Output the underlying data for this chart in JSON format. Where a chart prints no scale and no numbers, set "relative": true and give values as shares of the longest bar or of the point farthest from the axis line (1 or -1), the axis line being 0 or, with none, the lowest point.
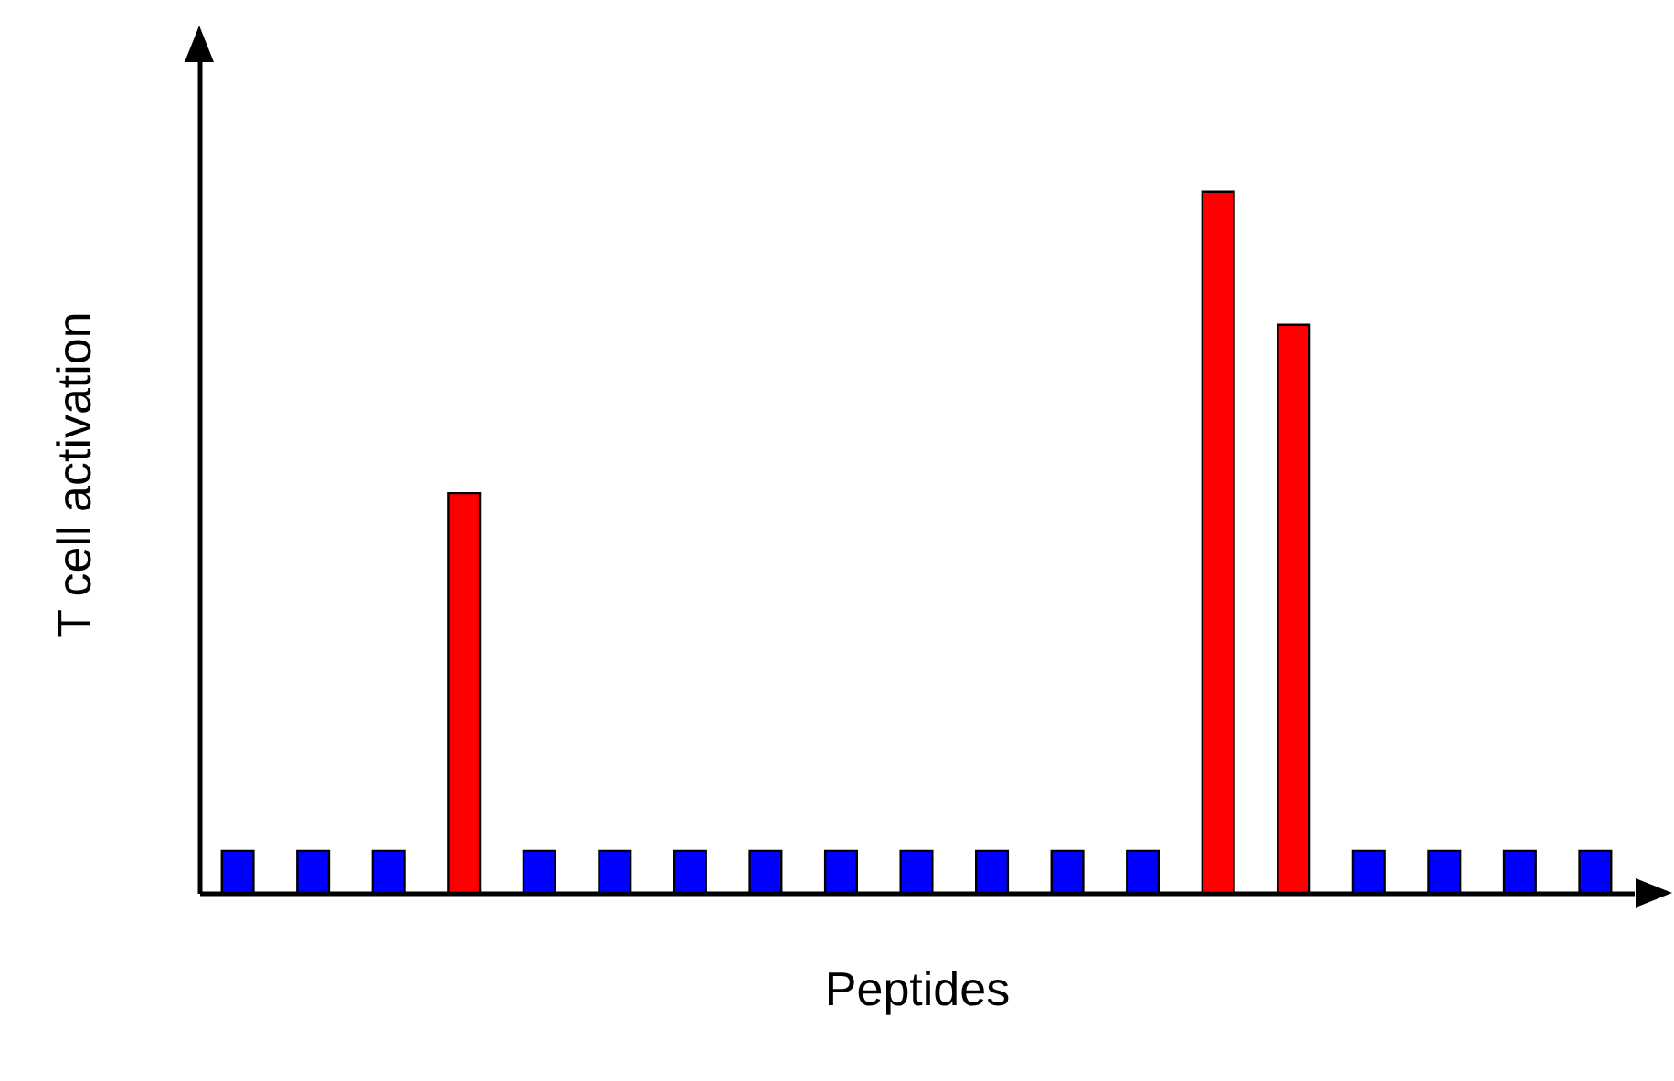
{
  "chart_data": {
    "type": "bar",
    "xlabel": "Peptides",
    "ylabel": "T cell activation",
    "relative": true,
    "categories": [
      null,
      null,
      null,
      null,
      null,
      null,
      null,
      null,
      null,
      null,
      null,
      null,
      null,
      null,
      null,
      null,
      null,
      null,
      null
    ],
    "values": [
      0.06,
      0.06,
      0.06,
      0.57,
      0.06,
      0.06,
      0.06,
      0.06,
      0.06,
      0.06,
      0.06,
      0.06,
      0.06,
      1,
      0.81,
      0.06,
      0.06,
      0.06,
      0.06
    ],
    "colors": [
      "#0000ff",
      "#0000ff",
      "#0000ff",
      "#ff0000",
      "#0000ff",
      "#0000ff",
      "#0000ff",
      "#0000ff",
      "#0000ff",
      "#0000ff",
      "#0000ff",
      "#0000ff",
      "#0000ff",
      "#ff0000",
      "#ff0000",
      "#0000ff",
      "#0000ff",
      "#0000ff",
      "#0000ff"
    ]
  }
}
